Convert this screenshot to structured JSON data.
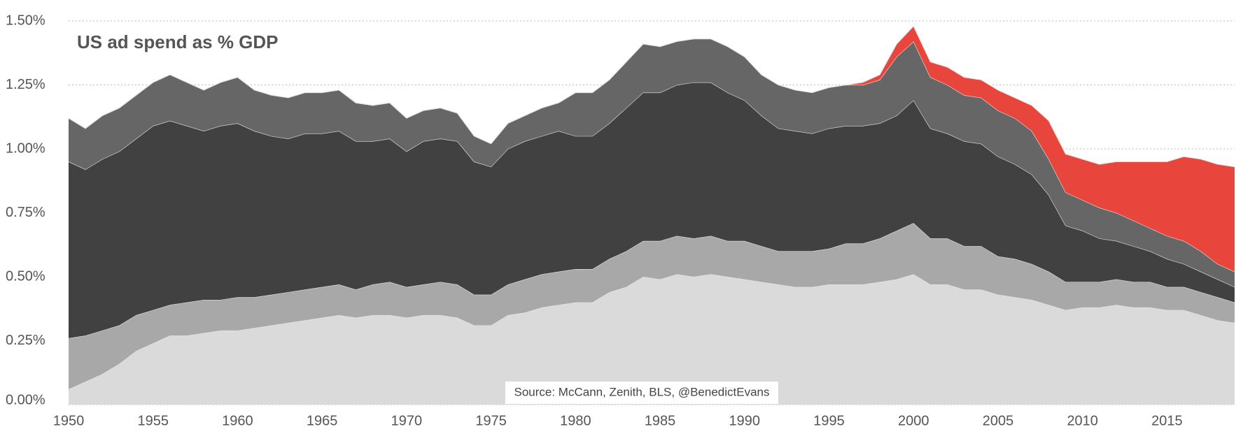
{
  "chart_data": {
    "type": "stacked-area",
    "title": "US ad spend as % GDP",
    "source": "Source: McCann, Zenith, BLS, @BenedictEvans",
    "x": [
      1950,
      1951,
      1952,
      1953,
      1954,
      1955,
      1956,
      1957,
      1958,
      1959,
      1960,
      1961,
      1962,
      1963,
      1964,
      1965,
      1966,
      1967,
      1968,
      1969,
      1970,
      1971,
      1972,
      1973,
      1974,
      1975,
      1976,
      1977,
      1978,
      1979,
      1980,
      1981,
      1982,
      1983,
      1984,
      1985,
      1986,
      1987,
      1988,
      1989,
      1990,
      1991,
      1992,
      1993,
      1994,
      1995,
      1996,
      1997,
      1998,
      1999,
      2000,
      2001,
      2002,
      2003,
      2004,
      2005,
      2006,
      2007,
      2008,
      2009,
      2010,
      2011,
      2012,
      2013,
      2014,
      2015,
      2016,
      2017,
      2018,
      2019
    ],
    "xlim": [
      1950,
      2019
    ],
    "xticks": [
      1950,
      1955,
      1960,
      1965,
      1970,
      1975,
      1980,
      1985,
      1990,
      1995,
      2000,
      2005,
      2010,
      2015
    ],
    "ylim": [
      0,
      1.5
    ],
    "yticks": [
      {
        "value": 0,
        "label": "0.00%"
      },
      {
        "value": 0.25,
        "label": "0.25%"
      },
      {
        "value": 0.5,
        "label": "0.50%"
      },
      {
        "value": 0.75,
        "label": "0.75%"
      },
      {
        "value": 1,
        "label": "1.00%"
      },
      {
        "value": 1.25,
        "label": "1.25%"
      },
      {
        "value": 1.5,
        "label": "1.50%"
      }
    ],
    "grid": true,
    "series": [
      {
        "color": "#dadada",
        "values": [
          0.06,
          0.09,
          0.12,
          0.16,
          0.21,
          0.24,
          0.27,
          0.27,
          0.28,
          0.29,
          0.29,
          0.3,
          0.31,
          0.32,
          0.33,
          0.34,
          0.35,
          0.34,
          0.35,
          0.35,
          0.34,
          0.35,
          0.35,
          0.34,
          0.31,
          0.31,
          0.35,
          0.36,
          0.38,
          0.39,
          0.4,
          0.4,
          0.44,
          0.46,
          0.5,
          0.49,
          0.51,
          0.5,
          0.51,
          0.5,
          0.49,
          0.48,
          0.47,
          0.46,
          0.46,
          0.47,
          0.47,
          0.47,
          0.48,
          0.49,
          0.51,
          0.47,
          0.47,
          0.45,
          0.45,
          0.43,
          0.42,
          0.41,
          0.39,
          0.37,
          0.38,
          0.38,
          0.39,
          0.38,
          0.38,
          0.37,
          0.37,
          0.35,
          0.33,
          0.32
        ]
      },
      {
        "color": "#a8a8a8",
        "values": [
          0.2,
          0.18,
          0.17,
          0.15,
          0.14,
          0.13,
          0.12,
          0.13,
          0.13,
          0.12,
          0.13,
          0.12,
          0.12,
          0.12,
          0.12,
          0.12,
          0.12,
          0.11,
          0.12,
          0.13,
          0.12,
          0.12,
          0.13,
          0.13,
          0.12,
          0.12,
          0.12,
          0.13,
          0.13,
          0.13,
          0.13,
          0.13,
          0.13,
          0.14,
          0.14,
          0.15,
          0.15,
          0.15,
          0.15,
          0.14,
          0.15,
          0.14,
          0.13,
          0.14,
          0.14,
          0.14,
          0.16,
          0.16,
          0.17,
          0.19,
          0.2,
          0.18,
          0.18,
          0.17,
          0.17,
          0.15,
          0.15,
          0.14,
          0.13,
          0.11,
          0.1,
          0.1,
          0.1,
          0.1,
          0.1,
          0.09,
          0.09,
          0.09,
          0.09,
          0.08
        ]
      },
      {
        "color": "#414141",
        "values": [
          0.69,
          0.65,
          0.67,
          0.68,
          0.69,
          0.72,
          0.72,
          0.69,
          0.66,
          0.68,
          0.68,
          0.65,
          0.62,
          0.6,
          0.61,
          0.6,
          0.6,
          0.58,
          0.56,
          0.56,
          0.53,
          0.56,
          0.56,
          0.56,
          0.52,
          0.5,
          0.53,
          0.54,
          0.54,
          0.55,
          0.52,
          0.52,
          0.53,
          0.56,
          0.58,
          0.58,
          0.59,
          0.61,
          0.6,
          0.58,
          0.55,
          0.51,
          0.48,
          0.47,
          0.46,
          0.47,
          0.46,
          0.46,
          0.45,
          0.45,
          0.48,
          0.43,
          0.41,
          0.41,
          0.4,
          0.39,
          0.37,
          0.35,
          0.3,
          0.22,
          0.2,
          0.17,
          0.15,
          0.14,
          0.12,
          0.11,
          0.09,
          0.08,
          0.07,
          0.06
        ]
      },
      {
        "color": "#666666",
        "values": [
          0.17,
          0.16,
          0.17,
          0.17,
          0.17,
          0.17,
          0.18,
          0.17,
          0.16,
          0.17,
          0.18,
          0.16,
          0.16,
          0.16,
          0.16,
          0.16,
          0.16,
          0.15,
          0.14,
          0.14,
          0.13,
          0.12,
          0.12,
          0.11,
          0.1,
          0.09,
          0.1,
          0.1,
          0.11,
          0.11,
          0.17,
          0.17,
          0.17,
          0.18,
          0.19,
          0.18,
          0.17,
          0.17,
          0.17,
          0.18,
          0.17,
          0.16,
          0.17,
          0.16,
          0.16,
          0.16,
          0.16,
          0.16,
          0.17,
          0.23,
          0.23,
          0.2,
          0.19,
          0.18,
          0.18,
          0.18,
          0.18,
          0.17,
          0.14,
          0.13,
          0.12,
          0.12,
          0.11,
          0.1,
          0.09,
          0.09,
          0.09,
          0.08,
          0.06,
          0.06
        ]
      },
      {
        "color": "#e8453c",
        "values": [
          null,
          null,
          null,
          null,
          null,
          null,
          null,
          null,
          null,
          null,
          null,
          null,
          null,
          null,
          null,
          null,
          null,
          null,
          null,
          null,
          null,
          null,
          null,
          null,
          null,
          null,
          null,
          null,
          null,
          null,
          null,
          null,
          null,
          null,
          null,
          null,
          null,
          null,
          null,
          null,
          null,
          null,
          null,
          null,
          null,
          null,
          0.0,
          0.01,
          0.02,
          0.05,
          0.06,
          0.06,
          0.07,
          0.07,
          0.07,
          0.08,
          0.08,
          0.1,
          0.15,
          0.15,
          0.16,
          0.17,
          0.2,
          0.23,
          0.26,
          0.29,
          0.33,
          0.36,
          0.39,
          0.41
        ]
      }
    ]
  }
}
